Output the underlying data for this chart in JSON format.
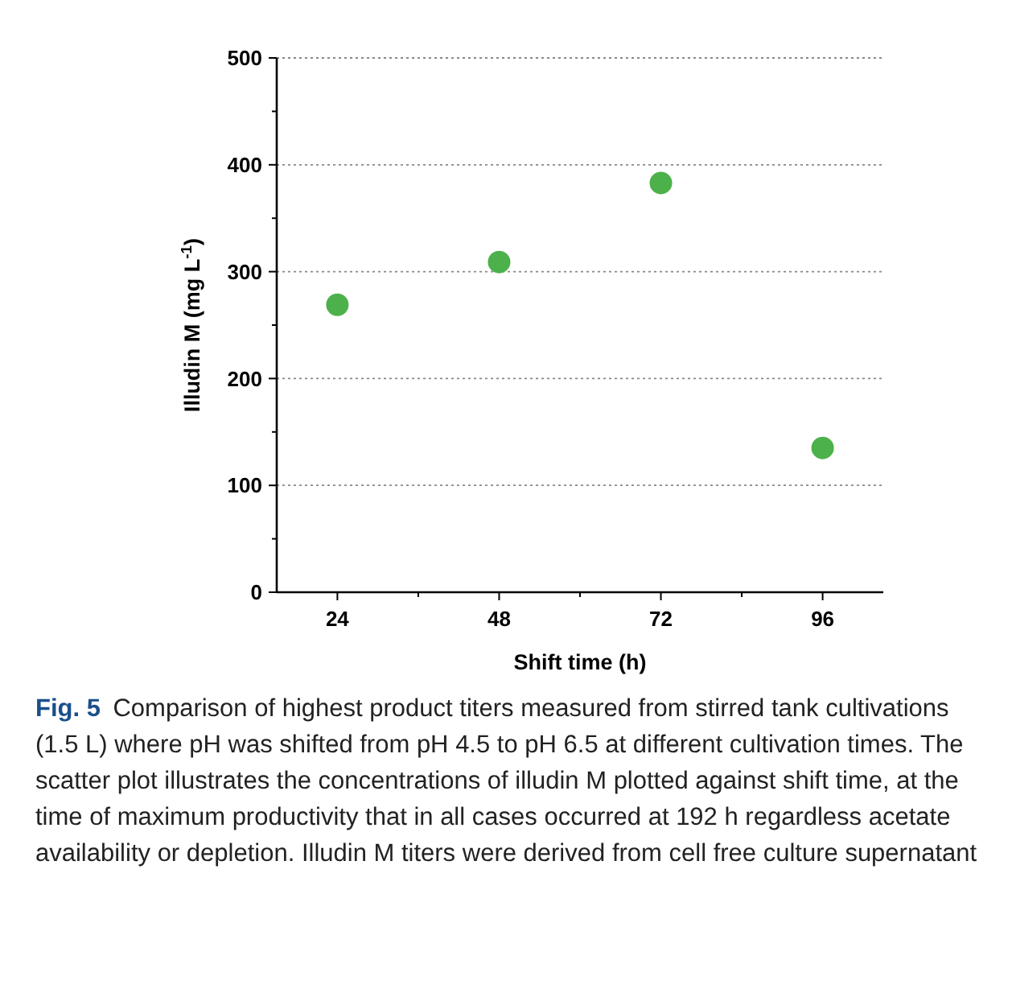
{
  "chart_data": {
    "type": "scatter",
    "xlabel": "Shift time (h)",
    "ylabel": "Illudin M (mg L$^{-1}$)",
    "x": [
      24,
      48,
      72,
      96
    ],
    "series": [
      {
        "color": "#4cb14a",
        "values": [
          269,
          309,
          383,
          135
        ]
      }
    ],
    "xlim": [
      15,
      105
    ],
    "xticks": [
      24,
      {
        "value": 36,
        "label": null
      },
      48,
      {
        "value": 60,
        "label": null
      },
      72,
      {
        "value": 84,
        "label": null
      },
      96
    ],
    "ylim": [
      0,
      500
    ],
    "yticks": [
      0,
      {
        "value": 50,
        "label": null
      },
      100,
      {
        "value": 150,
        "label": null
      },
      200,
      {
        "value": 250,
        "label": null
      },
      300,
      {
        "value": 350,
        "label": null
      },
      400,
      {
        "value": 450,
        "label": null
      },
      500
    ],
    "grid": "y",
    "marker": "circle",
    "annotations": [
      "Fig. 5",
      "Comparison of highest product titers measured from stirred tank cultivations (1.5 L) where pH was shifted from pH 4.5 to pH 6.5 at different cultivation times. The scatter plot illustrates the concentrations of illudin M plotted against shift time, at the time of maximum productivity that in all cases occurred at 192 h regardless acetate availability or depletion. Illudin M titers were derived from cell free culture supernatant"
    ]
  }
}
